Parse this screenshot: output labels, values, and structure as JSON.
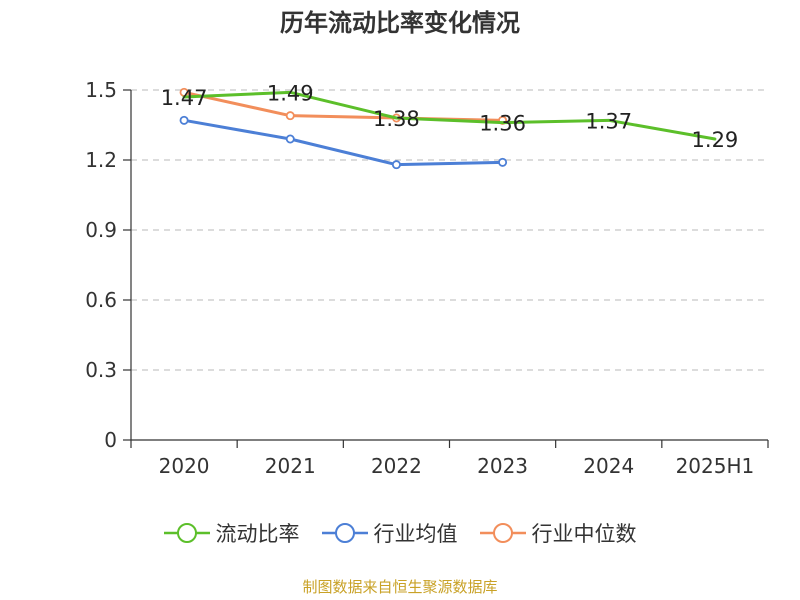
{
  "chart_data": {
    "type": "line",
    "title": "历年流动比率变化情况",
    "categories": [
      "2020",
      "2021",
      "2022",
      "2023",
      "2024",
      "2025H1"
    ],
    "ylim": [
      0,
      1.5
    ],
    "yticks": [
      "0",
      "0.3",
      "0.6",
      "0.9",
      "1.2",
      "1.5"
    ],
    "ytick_values": [
      0,
      0.3,
      0.6,
      0.9,
      1.2,
      1.5
    ],
    "grid": true,
    "legend_position": "bottom",
    "series": [
      {
        "name": "流动比率",
        "color": "#5cbf2a",
        "values": [
          1.47,
          1.49,
          1.38,
          1.36,
          1.37,
          1.29
        ],
        "labels": [
          "1.47",
          "1.49",
          "1.38",
          "1.36",
          "1.37",
          "1.29"
        ]
      },
      {
        "name": "行业均值",
        "color": "#4c7fd6",
        "values": [
          1.37,
          1.29,
          1.18,
          1.19,
          null,
          null
        ]
      },
      {
        "name": "行业中位数",
        "color": "#f28e5b",
        "values": [
          1.49,
          1.39,
          1.38,
          1.37,
          null,
          null
        ]
      }
    ]
  },
  "source_note": "制图数据来自恒生聚源数据库"
}
